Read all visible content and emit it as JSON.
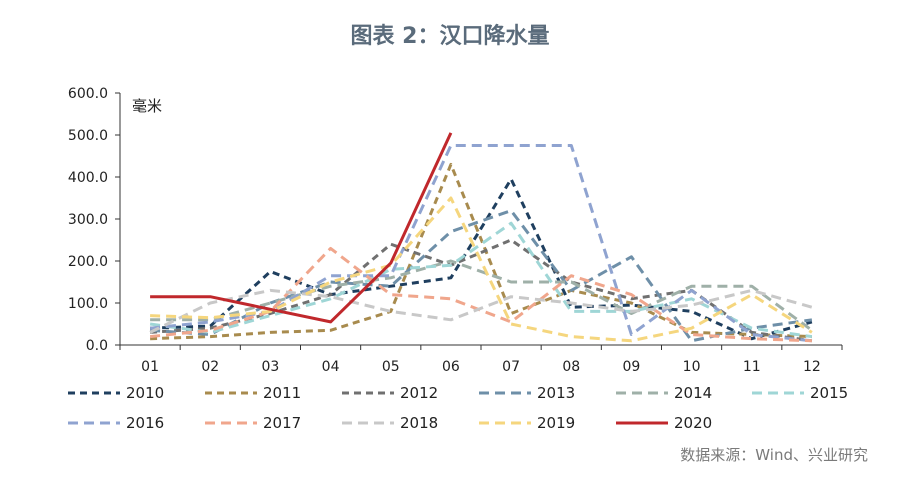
{
  "title": "图表 2：汉口降水量",
  "source": "数据来源：Wind、兴业研究",
  "chart_data": {
    "type": "line",
    "ylabel": "毫米",
    "ylim": [
      0,
      600
    ],
    "yticks": [
      "0.0",
      "100.0",
      "200.0",
      "300.0",
      "400.0",
      "500.0",
      "600.0"
    ],
    "categories": [
      "01",
      "02",
      "03",
      "04",
      "05",
      "06",
      "07",
      "08",
      "09",
      "10",
      "11",
      "12"
    ],
    "series": [
      {
        "name": "2010",
        "color": "#1f3f5f",
        "dash": "7,5",
        "width": 3,
        "values": [
          40,
          45,
          175,
          120,
          140,
          160,
          395,
          90,
          95,
          80,
          15,
          55
        ]
      },
      {
        "name": "2011",
        "color": "#a88b4e",
        "dash": "7,5",
        "width": 3,
        "values": [
          15,
          20,
          30,
          35,
          80,
          430,
          75,
          130,
          100,
          30,
          25,
          20
        ]
      },
      {
        "name": "2012",
        "color": "#707070",
        "dash": "7,5",
        "width": 3,
        "values": [
          30,
          40,
          75,
          120,
          240,
          190,
          250,
          150,
          110,
          130,
          30,
          10
        ]
      },
      {
        "name": "2013",
        "color": "#6e8fa8",
        "dash": "10,6",
        "width": 3,
        "values": [
          35,
          25,
          100,
          150,
          140,
          270,
          320,
          130,
          210,
          10,
          40,
          60
        ]
      },
      {
        "name": "2014",
        "color": "#9fb0a8",
        "dash": "10,6",
        "width": 3,
        "values": [
          60,
          60,
          100,
          140,
          160,
          200,
          150,
          150,
          75,
          140,
          140,
          35
        ]
      },
      {
        "name": "2015",
        "color": "#9fd6d6",
        "dash": "10,6",
        "width": 3,
        "values": [
          50,
          30,
          70,
          110,
          180,
          190,
          290,
          80,
          80,
          110,
          40,
          20
        ]
      },
      {
        "name": "2016",
        "color": "#8fa3d0",
        "dash": "10,6",
        "width": 3,
        "values": [
          40,
          55,
          80,
          165,
          165,
          475,
          475,
          475,
          25,
          130,
          25,
          10
        ]
      },
      {
        "name": "2017",
        "color": "#f0a68c",
        "dash": "10,6",
        "width": 3,
        "values": [
          20,
          35,
          80,
          230,
          120,
          110,
          55,
          165,
          120,
          25,
          15,
          10
        ]
      },
      {
        "name": "2018",
        "color": "#c8c8c8",
        "dash": "10,6",
        "width": 3,
        "values": [
          30,
          100,
          130,
          115,
          80,
          60,
          115,
          100,
          80,
          95,
          130,
          90
        ]
      },
      {
        "name": "2019",
        "color": "#f5d67e",
        "dash": "10,6",
        "width": 3,
        "values": [
          70,
          65,
          80,
          150,
          190,
          350,
          50,
          20,
          10,
          40,
          120,
          30
        ]
      },
      {
        "name": "2020",
        "color": "#c0282c",
        "dash": "",
        "width": 3,
        "values": [
          115,
          115,
          85,
          55,
          195,
          505,
          null,
          null,
          null,
          null,
          null,
          null
        ]
      }
    ]
  }
}
